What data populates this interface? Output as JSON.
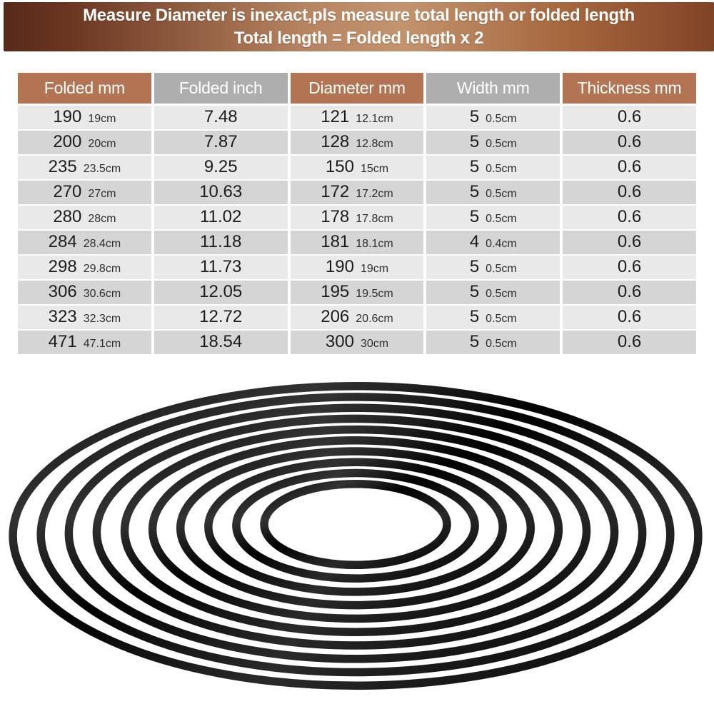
{
  "banner": {
    "line1": "Measure Diameter is inexact,pls measure total length or folded length",
    "line2": "Total length = Folded length x 2",
    "text_color": "#ffffff",
    "gradient_colors": [
      "#57291a",
      "#b68360",
      "#c2946e",
      "#8a4c2c"
    ]
  },
  "table": {
    "header_text_color": "#ffffff",
    "row_bg_odd": "#e9e9e9",
    "row_bg_even": "#d5d5d5",
    "columns": [
      {
        "label": "Folded mm",
        "header_bg": "#b27453"
      },
      {
        "label": "Folded inch",
        "header_bg": "#aeaeae"
      },
      {
        "label": "Diameter mm",
        "header_bg": "#b27453"
      },
      {
        "label": "Width mm",
        "header_bg": "#aeaeae"
      },
      {
        "label": "Thickness mm",
        "header_bg": "#b27453"
      }
    ],
    "rows": [
      {
        "folded_mm": "190",
        "folded_cm": "19cm",
        "folded_inch": "7.48",
        "diameter_mm": "121",
        "diameter_cm": "12.1cm",
        "width_mm": "5",
        "width_cm": "0.5cm",
        "thickness_mm": "0.6"
      },
      {
        "folded_mm": "200",
        "folded_cm": "20cm",
        "folded_inch": "7.87",
        "diameter_mm": "128",
        "diameter_cm": "12.8cm",
        "width_mm": "5",
        "width_cm": "0.5cm",
        "thickness_mm": "0.6"
      },
      {
        "folded_mm": "235",
        "folded_cm": "23.5cm",
        "folded_inch": "9.25",
        "diameter_mm": "150",
        "diameter_cm": "15cm",
        "width_mm": "5",
        "width_cm": "0.5cm",
        "thickness_mm": "0.6"
      },
      {
        "folded_mm": "270",
        "folded_cm": "27cm",
        "folded_inch": "10.63",
        "diameter_mm": "172",
        "diameter_cm": "17.2cm",
        "width_mm": "5",
        "width_cm": "0.5cm",
        "thickness_mm": "0.6"
      },
      {
        "folded_mm": "280",
        "folded_cm": "28cm",
        "folded_inch": "11.02",
        "diameter_mm": "178",
        "diameter_cm": "17.8cm",
        "width_mm": "5",
        "width_cm": "0.5cm",
        "thickness_mm": "0.6"
      },
      {
        "folded_mm": "284",
        "folded_cm": "28.4cm",
        "folded_inch": "11.18",
        "diameter_mm": "181",
        "diameter_cm": "18.1cm",
        "width_mm": "4",
        "width_cm": "0.4cm",
        "thickness_mm": "0.6"
      },
      {
        "folded_mm": "298",
        "folded_cm": "29.8cm",
        "folded_inch": "11.73",
        "diameter_mm": "190",
        "diameter_cm": "19cm",
        "width_mm": "5",
        "width_cm": "0.5cm",
        "thickness_mm": "0.6"
      },
      {
        "folded_mm": "306",
        "folded_cm": "30.6cm",
        "folded_inch": "12.05",
        "diameter_mm": "195",
        "diameter_cm": "19.5cm",
        "width_mm": "5",
        "width_cm": "0.5cm",
        "thickness_mm": "0.6"
      },
      {
        "folded_mm": "323",
        "folded_cm": "32.3cm",
        "folded_inch": "12.72",
        "diameter_mm": "206",
        "diameter_cm": "20.6cm",
        "width_mm": "5",
        "width_cm": "0.5cm",
        "thickness_mm": "0.6"
      },
      {
        "folded_mm": "471",
        "folded_cm": "47.1cm",
        "folded_inch": "18.54",
        "diameter_mm": "300",
        "diameter_cm": "30cm",
        "width_mm": "5",
        "width_cm": "0.5cm",
        "thickness_mm": "0.6"
      }
    ]
  },
  "belts": {
    "count": 10,
    "color": "#000000"
  }
}
